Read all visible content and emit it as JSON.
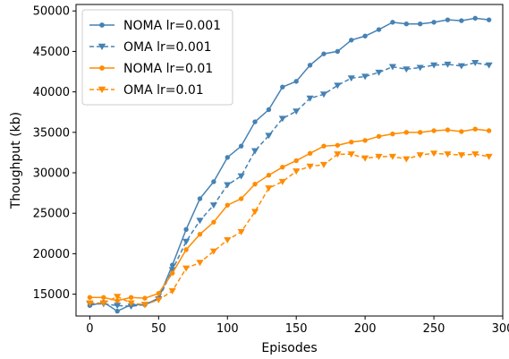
{
  "chart_data": {
    "type": "line",
    "xlabel": "Episodes",
    "ylabel": "Thoughput (kb)",
    "xlim": [
      -10,
      300
    ],
    "ylim": [
      12300,
      50800
    ],
    "xticks": [
      0,
      50,
      100,
      150,
      200,
      250,
      300
    ],
    "yticks": [
      15000,
      20000,
      25000,
      30000,
      35000,
      40000,
      45000,
      50000
    ],
    "grid": false,
    "legend_position": "top-left",
    "x": [
      0,
      10,
      20,
      30,
      40,
      50,
      60,
      70,
      80,
      90,
      100,
      110,
      120,
      130,
      140,
      150,
      160,
      170,
      180,
      190,
      200,
      210,
      220,
      230,
      240,
      250,
      260,
      270,
      280,
      290
    ],
    "series": [
      {
        "name": "NOMA lr=0.001",
        "color": "#4682b4",
        "linestyle": "solid",
        "marker": "circle",
        "values": [
          13600,
          14000,
          12900,
          13700,
          13700,
          14500,
          18600,
          23000,
          26800,
          28900,
          31900,
          33300,
          36300,
          37800,
          40600,
          41300,
          43300,
          44700,
          45000,
          46400,
          46900,
          47700,
          48600,
          48400,
          48400,
          48600,
          48900,
          48800,
          49100,
          48900
        ]
      },
      {
        "name": "OMA lr=0.001",
        "color": "#4682b4",
        "linestyle": "dashed",
        "marker": "triangle-down",
        "values": [
          13800,
          13800,
          13600,
          13500,
          13700,
          14400,
          18000,
          21500,
          24100,
          26000,
          28500,
          29600,
          32700,
          34600,
          36700,
          37600,
          39200,
          39700,
          40800,
          41700,
          41900,
          42400,
          43100,
          42800,
          43000,
          43300,
          43400,
          43200,
          43600,
          43300
        ]
      },
      {
        "name": "NOMA lr=0.01",
        "color": "#ff8c00",
        "linestyle": "solid",
        "marker": "circle",
        "values": [
          14600,
          14600,
          14200,
          14600,
          14500,
          15100,
          17600,
          20500,
          22400,
          23900,
          26000,
          26800,
          28600,
          29700,
          30700,
          31500,
          32400,
          33300,
          33400,
          33800,
          34000,
          34500,
          34800,
          35000,
          35000,
          35200,
          35300,
          35100,
          35400,
          35200
        ]
      },
      {
        "name": "OMA lr=0.01",
        "color": "#ff8c00",
        "linestyle": "dashed",
        "marker": "triangle-down",
        "values": [
          13900,
          13900,
          14700,
          13900,
          13700,
          14300,
          15400,
          18200,
          18900,
          20300,
          21700,
          22700,
          25200,
          28100,
          28900,
          30200,
          30800,
          31000,
          32300,
          32300,
          31800,
          32000,
          32000,
          31700,
          32200,
          32400,
          32300,
          32200,
          32300,
          32000
        ]
      }
    ]
  }
}
